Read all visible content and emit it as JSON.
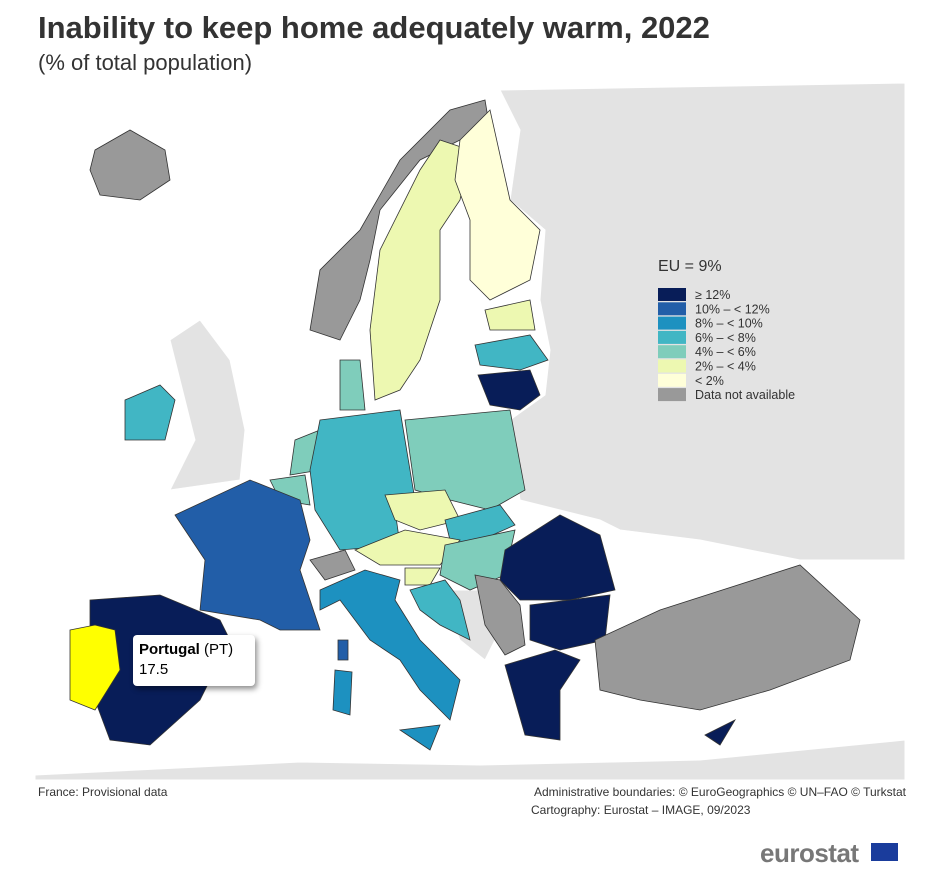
{
  "header": {
    "title": "Inability to keep home adequately warm, 2022",
    "subtitle": "(% of total population)"
  },
  "legend": {
    "title": "EU = 9%",
    "items": [
      {
        "label": "≥ 12%",
        "color": "#081d58"
      },
      {
        "label": "10% – < 12%",
        "color": "#225ea8"
      },
      {
        "label": "8% – < 10%",
        "color": "#1d91c0"
      },
      {
        "label": "6% – < 8%",
        "color": "#41b6c4"
      },
      {
        "label": "4% – < 6%",
        "color": "#7fcdbb"
      },
      {
        "label": "2% – < 4%",
        "color": "#edf8b1"
      },
      {
        "label": "< 2%",
        "color": "#ffffd9"
      },
      {
        "label": "Data not available",
        "color": "#999999"
      }
    ]
  },
  "tooltip": {
    "name": "Portugal",
    "code": "(PT)",
    "value": 17.5
  },
  "footer": {
    "note": "France: Provisional data",
    "credits": [
      "Administrative boundaries: © EuroGeographics © UN–FAO © Turkstat",
      "Cartography: Eurostat – IMAGE, 09/2023"
    ]
  },
  "logo": "eurostat"
}
